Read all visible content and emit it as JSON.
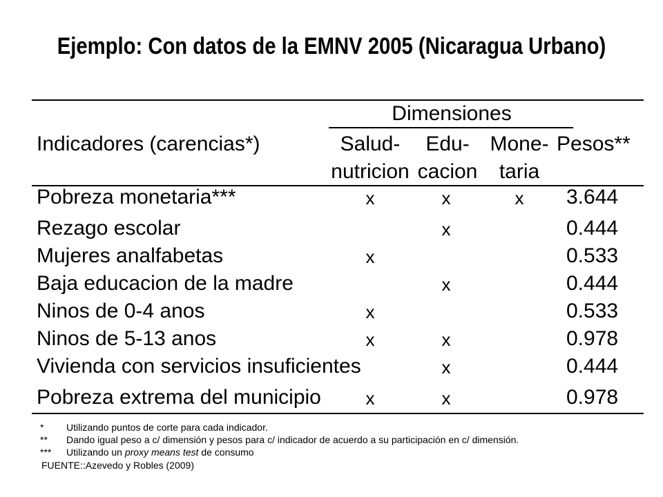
{
  "title": "Ejemplo: Con datos de la EMNV 2005 (Nicaragua Urbano)",
  "table": {
    "group_header": "Dimensiones",
    "row_header": "Indicadores (carencias*)",
    "columns": [
      {
        "line1": "Salud-",
        "line2": "nutricion"
      },
      {
        "line1": "Edu-",
        "line2": "cacion"
      },
      {
        "line1": "Mone-",
        "line2": "taria"
      }
    ],
    "weights_header": "Pesos**",
    "rows": [
      {
        "label": "Pobreza monetaria***",
        "salud": "x",
        "educacion": "x",
        "monetaria": "x",
        "peso": "3.644"
      },
      {
        "label": "Rezago escolar",
        "salud": "",
        "educacion": "x",
        "monetaria": "",
        "peso": "0.444"
      },
      {
        "label": "Mujeres analfabetas",
        "salud": "x",
        "educacion": "",
        "monetaria": "",
        "peso": "0.533"
      },
      {
        "label": "Baja educacion de la madre",
        "salud": "",
        "educacion": "x",
        "monetaria": "",
        "peso": "0.444"
      },
      {
        "label": "Ninos de 0-4 anos",
        "salud": "x",
        "educacion": "",
        "monetaria": "",
        "peso": "0.533"
      },
      {
        "label": "Ninos de 5-13 anos",
        "salud": "x",
        "educacion": "x",
        "monetaria": "",
        "peso": "0.978"
      },
      {
        "label": "Vivienda con servicios insuficientes",
        "salud": "",
        "educacion": "x",
        "monetaria": "",
        "peso": "0.444"
      },
      {
        "label": "Pobreza extrema del municipio",
        "salud": "x",
        "educacion": "x",
        "monetaria": "",
        "peso": "0.978"
      }
    ]
  },
  "footnotes": {
    "n1_sym": "*",
    "n1_text": "Utilizando puntos de corte para cada indicador.",
    "n2_sym": "**",
    "n2_text": "Dando igual peso a c/ dimensión y pesos para c/ indicador de acuerdo a su participación en c/ dimensión.",
    "n3_sym": "***",
    "n3_text_pre": "Utilizando un ",
    "n3_text_italic": "proxy means test",
    "n3_text_post": " de consumo",
    "source": "FUENTE::Azevedo y Robles (2009)"
  }
}
